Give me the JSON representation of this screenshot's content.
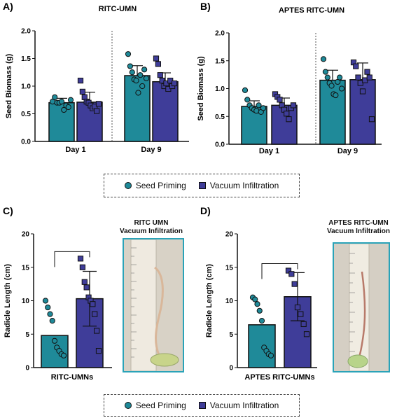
{
  "chart_data": [
    {
      "panel": "A)",
      "type": "bar",
      "title": "RITC-UMN",
      "ylabel": "Seed Biomass (g)",
      "ylim": [
        0,
        2.0
      ],
      "yticks": [
        "0.0",
        "0.5",
        "1.0",
        "1.5",
        "2.0"
      ],
      "categories": [
        "Day 1",
        "Day 9"
      ],
      "series": [
        {
          "name": "Seed Priming",
          "color": "#1f8a99",
          "marker": "circle",
          "values": [
            0.7,
            1.19
          ],
          "sd": [
            0.08,
            0.18
          ],
          "points": [
            [
              0.72,
              0.8,
              0.7,
              0.7,
              0.72,
              0.57,
              0.65,
              0.62,
              0.75
            ],
            [
              1.58,
              1.36,
              1.25,
              1.12,
              1.1,
              0.88,
              1.2,
              1.0,
              1.3,
              1.14
            ]
          ]
        },
        {
          "name": "Vacuum Infiltration",
          "color": "#3f3d99",
          "marker": "square",
          "values": [
            0.71,
            1.08
          ],
          "sd": [
            0.18,
            0.16
          ],
          "points": [
            [
              1.1,
              0.9,
              0.8,
              0.72,
              0.7,
              0.65,
              0.6,
              0.63,
              0.55,
              0.68
            ],
            [
              1.5,
              1.4,
              1.2,
              1.1,
              1.0,
              1.05,
              0.95,
              1.1,
              1.0,
              1.05
            ]
          ]
        }
      ]
    },
    {
      "panel": "B)",
      "type": "bar",
      "title": "APTES RITC-UMN",
      "ylabel": "Seed Biomass (g)",
      "ylim": [
        0,
        2.0
      ],
      "yticks": [
        "0.0",
        "0.5",
        "1.0",
        "1.5",
        "2.0"
      ],
      "categories": [
        "Day 1",
        "Day 9"
      ],
      "series": [
        {
          "name": "Seed Priming",
          "color": "#1f8a99",
          "marker": "circle",
          "values": [
            0.68,
            1.15
          ],
          "sd": [
            0.1,
            0.18
          ],
          "points": [
            [
              0.97,
              0.8,
              0.7,
              0.65,
              0.62,
              0.6,
              0.7,
              0.58,
              0.65
            ],
            [
              1.53,
              1.3,
              1.2,
              1.1,
              1.05,
              0.9,
              0.88,
              1.12,
              1.2,
              1.0
            ]
          ]
        },
        {
          "name": "Vacuum Infiltration",
          "color": "#3f3d99",
          "marker": "square",
          "values": [
            0.7,
            1.16
          ],
          "sd": [
            0.13,
            0.3
          ],
          "points": [
            [
              0.9,
              0.85,
              0.8,
              0.7,
              0.62,
              0.55,
              0.45,
              0.65,
              0.7
            ],
            [
              1.47,
              1.4,
              1.2,
              1.1,
              0.95,
              1.15,
              1.3,
              1.2,
              0.45
            ]
          ]
        }
      ]
    },
    {
      "panel": "C)",
      "type": "bar",
      "ylabel": "Radicle Length (cm)",
      "ylim": [
        0,
        20
      ],
      "yticks": [
        "0",
        "5",
        "10",
        "15",
        "20"
      ],
      "xlabel": "RITC-UMNs",
      "series": [
        {
          "name": "Seed Priming",
          "color": "#1f8a99",
          "marker": "circle",
          "value": 4.8,
          "sd": 0,
          "points": [
            10.0,
            9.0,
            8.0,
            7.0,
            4.0,
            3.0,
            2.5,
            2.0,
            1.8
          ]
        },
        {
          "name": "Vacuum Infiltration",
          "color": "#3f3d99",
          "marker": "square",
          "value": 10.3,
          "sd": 4.1,
          "points": [
            16.3,
            15.0,
            12.8,
            12.0,
            10.5,
            10.0,
            9.5,
            8.0,
            5.5,
            2.5
          ]
        }
      ]
    },
    {
      "panel": "D)",
      "type": "bar",
      "ylabel": "Radicle Length (cm)",
      "ylim": [
        0,
        20
      ],
      "yticks": [
        "0",
        "5",
        "10",
        "15",
        "20"
      ],
      "xlabel": "APTES RITC-UMNs",
      "series": [
        {
          "name": "Seed Priming",
          "color": "#1f8a99",
          "marker": "circle",
          "value": 6.4,
          "sd": 0,
          "points": [
            10.5,
            10.2,
            9.5,
            8.5,
            7.0,
            3.0,
            2.5,
            2.0,
            1.8
          ]
        },
        {
          "name": "Vacuum Infiltration",
          "color": "#3f3d99",
          "marker": "square",
          "value": 10.6,
          "sd": 3.6,
          "points": [
            14.5,
            14.0,
            12.5,
            9.0,
            8.0,
            6.5,
            5.0
          ]
        }
      ]
    }
  ],
  "legend_top": {
    "items": [
      "Seed Priming",
      "Vacuum Infiltration"
    ]
  },
  "legend_bottom": {
    "items": [
      "Seed Priming",
      "Vacuum Infiltration"
    ]
  },
  "photo_c": {
    "title_line1": "RITC UMN",
    "title_line2": "Vacuum Infiltration"
  },
  "photo_d": {
    "title_line1": "APTES RITC-UMN",
    "title_line2": "Vacuum Infiltration"
  }
}
